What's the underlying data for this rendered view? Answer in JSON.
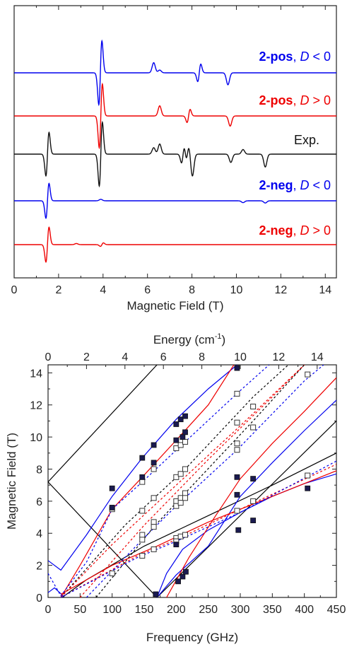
{
  "chart_data": [
    {
      "type": "line",
      "xlabel": "Magnetic Field (T)",
      "xlim": [
        0,
        14.5
      ],
      "xticks": [
        0,
        2,
        4,
        6,
        8,
        10,
        12,
        14
      ],
      "y_axis": "no ticks; traces vertically offset",
      "traces": [
        {
          "label_bold": "2-pos",
          "label_rest": ", ",
          "label_D": "D",
          "label_rel": " < 0",
          "color": "#0000ee",
          "baseline_field_T": [
            0,
            14.5
          ],
          "features": [
            {
              "x": 3.88,
              "type": "derivative",
              "amplitude": 2.2
            },
            {
              "x": 6.28,
              "type": "peak",
              "amplitude": 0.55
            },
            {
              "x": 6.55,
              "type": "peak",
              "amplitude": 0.15
            },
            {
              "x": 8.33,
              "type": "derivative",
              "amplitude": 0.6
            },
            {
              "x": 9.62,
              "type": "trough",
              "amplitude": 0.65
            }
          ]
        },
        {
          "label_bold": "2-pos",
          "label_rest": ", ",
          "label_D": "D",
          "label_rel": " > 0",
          "color": "#ee0000",
          "features": [
            {
              "x": 3.9,
              "type": "derivative",
              "amplitude": 2.2
            },
            {
              "x": 6.55,
              "type": "peak",
              "amplitude": 0.55
            },
            {
              "x": 7.85,
              "type": "derivative",
              "amplitude": 0.45
            },
            {
              "x": 9.72,
              "type": "trough",
              "amplitude": 0.55
            }
          ]
        },
        {
          "label_plain": "Exp.",
          "color": "#111111",
          "features": [
            {
              "x": 1.5,
              "type": "derivative",
              "amplitude": 1.5
            },
            {
              "x": 3.9,
              "type": "derivative",
              "amplitude": 2.2
            },
            {
              "x": 6.28,
              "type": "peak",
              "amplitude": 0.35
            },
            {
              "x": 6.55,
              "type": "peak",
              "amplitude": 0.55
            },
            {
              "x": 7.6,
              "type": "derivative",
              "amplitude": 0.6
            },
            {
              "x": 7.8,
              "type": "derivative",
              "amplitude": 0.5
            },
            {
              "x": 8.02,
              "type": "trough",
              "amplitude": 1.2
            },
            {
              "x": 9.75,
              "type": "trough",
              "amplitude": 0.45
            },
            {
              "x": 10.3,
              "type": "peak",
              "amplitude": 0.25
            },
            {
              "x": 11.3,
              "type": "trough",
              "amplitude": 0.7
            }
          ]
        },
        {
          "label_bold": "2-neg",
          "label_rest": ", ",
          "label_D": "D",
          "label_rel": " < 0",
          "color": "#0000ee",
          "features": [
            {
              "x": 1.5,
              "type": "derivative",
              "amplitude": 1.2
            },
            {
              "x": 3.9,
              "type": "peak",
              "amplitude": 0.08
            },
            {
              "x": 10.3,
              "type": "trough",
              "amplitude": 0.1
            },
            {
              "x": 11.3,
              "type": "trough",
              "amplitude": 0.12
            }
          ]
        },
        {
          "label_bold": "2-neg",
          "label_rest": ", ",
          "label_D": "D",
          "label_rel": " > 0",
          "color": "#ee0000",
          "features": [
            {
              "x": 1.5,
              "type": "derivative",
              "amplitude": 1.2
            },
            {
              "x": 2.8,
              "type": "peak",
              "amplitude": 0.06
            },
            {
              "x": 3.95,
              "type": "derivative",
              "amplitude": 0.12
            }
          ]
        }
      ]
    },
    {
      "type": "scatter",
      "xlabel": "Frequency (GHz)",
      "ylabel": "Magnetic Field (T)",
      "top_label": "Energy (cm",
      "top_label_sup": "-1",
      "top_label_tail": ")",
      "xlim": [
        0,
        450
      ],
      "ylim": [
        0,
        14.5
      ],
      "top_xlim": [
        0,
        15
      ],
      "xticks": [
        0,
        50,
        100,
        150,
        200,
        250,
        300,
        350,
        400,
        450
      ],
      "yticks": [
        0,
        2,
        4,
        6,
        8,
        10,
        12,
        14
      ],
      "top_ticks": [
        0,
        2,
        4,
        6,
        8,
        10,
        12,
        14
      ],
      "filled_points": [
        [
          100,
          6.8
        ],
        [
          100,
          5.6
        ],
        [
          147,
          8.7
        ],
        [
          147,
          7.5
        ],
        [
          165,
          9.5
        ],
        [
          165,
          8.4
        ],
        [
          168,
          0.2
        ],
        [
          200,
          10.8
        ],
        [
          200,
          9.8
        ],
        [
          200,
          3.3
        ],
        [
          203,
          1.0
        ],
        [
          207,
          11.1
        ],
        [
          210,
          1.3
        ],
        [
          210,
          10.0
        ],
        [
          214,
          11.3
        ],
        [
          214,
          10.3
        ],
        [
          215,
          1.6
        ],
        [
          295,
          14.3
        ],
        [
          295,
          7.5
        ],
        [
          295,
          6.4
        ],
        [
          297,
          4.2
        ],
        [
          320,
          7.4
        ],
        [
          320,
          4.8
        ],
        [
          405,
          6.8
        ]
      ],
      "open_points": [
        [
          100,
          5.5
        ],
        [
          100,
          1.5
        ],
        [
          147,
          7.2
        ],
        [
          147,
          5.4
        ],
        [
          147,
          3.9
        ],
        [
          147,
          3.6
        ],
        [
          147,
          2.6
        ],
        [
          165,
          8.0
        ],
        [
          165,
          6.2
        ],
        [
          165,
          4.7
        ],
        [
          165,
          4.4
        ],
        [
          165,
          3.0
        ],
        [
          200,
          9.3
        ],
        [
          200,
          7.5
        ],
        [
          200,
          6.0
        ],
        [
          200,
          5.7
        ],
        [
          200,
          3.7
        ],
        [
          200,
          3.5
        ],
        [
          207,
          9.5
        ],
        [
          207,
          7.7
        ],
        [
          207,
          6.2
        ],
        [
          207,
          5.9
        ],
        [
          207,
          3.8
        ],
        [
          214,
          9.7
        ],
        [
          214,
          8.0
        ],
        [
          214,
          6.5
        ],
        [
          214,
          6.2
        ],
        [
          214,
          3.9
        ],
        [
          295,
          12.7
        ],
        [
          295,
          10.9
        ],
        [
          295,
          9.6
        ],
        [
          295,
          9.2
        ],
        [
          295,
          5.4
        ],
        [
          320,
          11.9
        ],
        [
          320,
          10.6
        ],
        [
          320,
          6.0
        ],
        [
          405,
          13.9
        ],
        [
          405,
          7.6
        ]
      ],
      "curves": [
        {
          "color": "#000000",
          "style": "solid",
          "points": [
            [
              0,
              7.2
            ],
            [
              170,
              0
            ]
          ]
        },
        {
          "color": "#000000",
          "style": "solid",
          "points": [
            [
              0,
              7.2
            ],
            [
              170,
              14.5
            ]
          ]
        },
        {
          "color": "#000000",
          "style": "solid",
          "points": [
            [
              170,
              0
            ],
            [
              450,
              11.0
            ]
          ]
        },
        {
          "color": "#000000",
          "style": "solid",
          "points": [
            [
              22,
              0
            ],
            [
              60,
              1.1
            ],
            [
              150,
              3.2
            ],
            [
              250,
              5.1
            ],
            [
              350,
              7.0
            ],
            [
              450,
              9.0
            ]
          ]
        },
        {
          "color": "#0000ee",
          "style": "solid",
          "points": [
            [
              0,
              2.3
            ],
            [
              20,
              1.7
            ],
            [
              60,
              3.9
            ],
            [
              100,
              6.3
            ],
            [
              147,
              8.7
            ],
            [
              200,
              11.1
            ],
            [
              250,
              13.0
            ],
            [
              295,
              14.5
            ]
          ]
        },
        {
          "color": "#0000ee",
          "style": "solid",
          "points": [
            [
              170,
              0
            ],
            [
              185,
              1.5
            ],
            [
              210,
              3.0
            ],
            [
              250,
              4.2
            ],
            [
              300,
              5.3
            ],
            [
              350,
              6.3
            ],
            [
              400,
              7.1
            ],
            [
              450,
              7.7
            ]
          ]
        },
        {
          "color": "#0000ee",
          "style": "solid",
          "points": [
            [
              0,
              0.3
            ],
            [
              10,
              0.6
            ],
            [
              25,
              0.05
            ]
          ]
        },
        {
          "color": "#0000ee",
          "style": "solid",
          "points": [
            [
              170,
              0
            ],
            [
              200,
              1.4
            ],
            [
              250,
              3.2
            ],
            [
              300,
              6.3
            ],
            [
              350,
              8.4
            ],
            [
              400,
              10.4
            ],
            [
              450,
              12.3
            ]
          ]
        },
        {
          "color": "#ee0000",
          "style": "solid",
          "points": [
            [
              20,
              0
            ],
            [
              50,
              2.0
            ],
            [
              100,
              5.5
            ],
            [
              147,
              7.5
            ],
            [
              200,
              9.8
            ],
            [
              250,
              12.0
            ],
            [
              290,
              14.5
            ]
          ]
        },
        {
          "color": "#ee0000",
          "style": "solid",
          "points": [
            [
              185,
              0
            ],
            [
              220,
              2.5
            ],
            [
              260,
              5.0
            ],
            [
              300,
              7.4
            ],
            [
              350,
              9.6
            ],
            [
              400,
              11.6
            ],
            [
              450,
              13.7
            ]
          ]
        },
        {
          "color": "#ee0000",
          "style": "solid",
          "points": [
            [
              20,
              0.2
            ],
            [
              100,
              2.0
            ],
            [
              170,
              3.2
            ],
            [
              250,
              4.7
            ],
            [
              350,
              6.3
            ],
            [
              450,
              7.9
            ]
          ]
        },
        {
          "color": "#000000",
          "style": "dash",
          "points": [
            [
              20,
              0
            ],
            [
              120,
              4.5
            ],
            [
              214,
              8.0
            ],
            [
              320,
              12.5
            ],
            [
              375,
              14.5
            ]
          ]
        },
        {
          "color": "#ee0000",
          "style": "dash",
          "points": [
            [
              20,
              0
            ],
            [
              100,
              3.3
            ],
            [
              200,
              7.0
            ],
            [
              300,
              10.7
            ],
            [
              400,
              14.5
            ]
          ]
        },
        {
          "color": "#ee0000",
          "style": "dash",
          "points": [
            [
              50,
              0
            ],
            [
              150,
              4.5
            ],
            [
              250,
              8.6
            ],
            [
              350,
              12.5
            ],
            [
              400,
              14.5
            ]
          ]
        },
        {
          "color": "#000000",
          "style": "dash",
          "points": [
            [
              75,
              0
            ],
            [
              165,
              4.4
            ],
            [
              214,
              6.5
            ],
            [
              320,
              11.0
            ],
            [
              400,
              14.5
            ]
          ]
        },
        {
          "color": "#0000ee",
          "style": "dash",
          "points": [
            [
              0,
              1.5
            ],
            [
              20,
              0.1
            ],
            [
              60,
              2.2
            ],
            [
              100,
              5.5
            ],
            [
              147,
              7.2
            ],
            [
              214,
              9.7
            ],
            [
              300,
              12.9
            ],
            [
              345,
              14.5
            ]
          ]
        },
        {
          "color": "#0000ee",
          "style": "dash",
          "points": [
            [
              60,
              0
            ],
            [
              147,
              3.6
            ],
            [
              200,
              5.7
            ],
            [
              295,
              9.2
            ],
            [
              400,
              13.5
            ],
            [
              430,
              14.5
            ]
          ]
        },
        {
          "color": "#ee0000",
          "style": "dash",
          "points": [
            [
              20,
              0
            ],
            [
              140,
              2.6
            ],
            [
              200,
              3.6
            ],
            [
              300,
              5.5
            ],
            [
              450,
              8.3
            ]
          ]
        },
        {
          "color": "#0000ee",
          "style": "dash",
          "points": [
            [
              20,
              0
            ],
            [
              140,
              2.5
            ],
            [
              200,
              3.5
            ],
            [
              300,
              5.3
            ],
            [
              450,
              8.5
            ]
          ]
        }
      ]
    }
  ]
}
